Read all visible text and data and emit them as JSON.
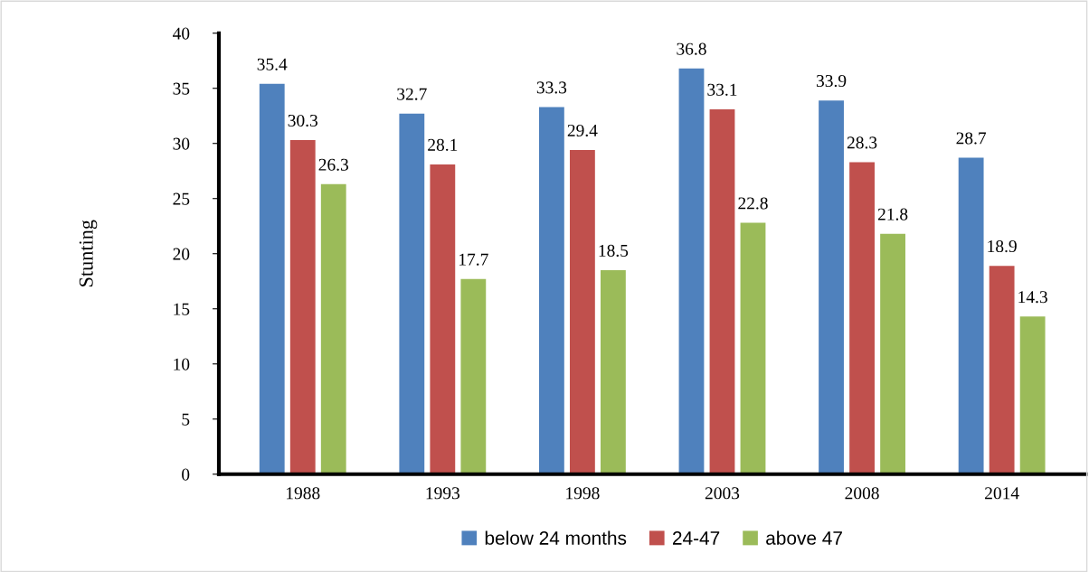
{
  "chart_data": {
    "type": "bar",
    "ylabel": "Stunting",
    "categories": [
      "1988",
      "1993",
      "1998",
      "2003",
      "2008",
      "2014"
    ],
    "series": [
      {
        "name": "below 24 months",
        "color": "#4f81bd",
        "values": [
          35.4,
          32.7,
          33.3,
          36.8,
          33.9,
          28.7
        ]
      },
      {
        "name": "24-47",
        "color": "#c0504d",
        "values": [
          30.3,
          28.1,
          29.4,
          33.1,
          28.3,
          18.9
        ]
      },
      {
        "name": "above 47",
        "color": "#9bbb59",
        "values": [
          26.3,
          17.7,
          18.5,
          22.8,
          21.8,
          14.3
        ]
      }
    ],
    "ylim": [
      0,
      40
    ],
    "yticks": [
      0,
      5,
      10,
      15,
      20,
      25,
      30,
      35,
      40
    ],
    "grid": false,
    "legend": "bottom",
    "data_labels": true
  }
}
